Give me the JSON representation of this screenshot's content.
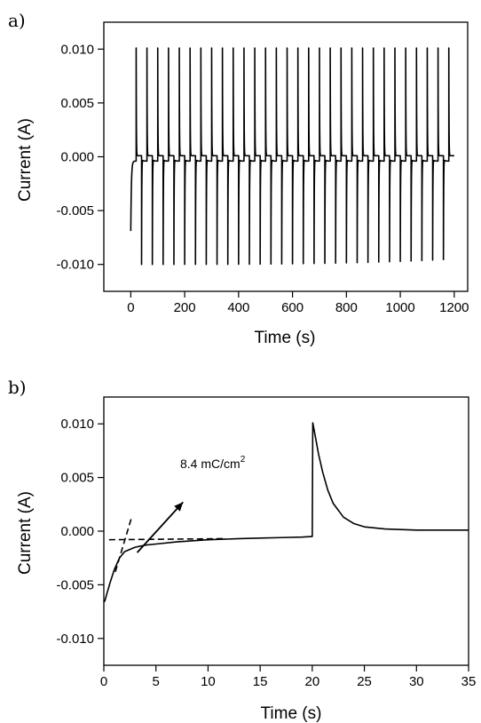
{
  "chart_data": [
    {
      "panel": "a)",
      "type": "line",
      "title": "",
      "xlabel": "Time (s)",
      "ylabel": "Current (A)",
      "xlim": [
        -100,
        1250
      ],
      "ylim": [
        -0.0125,
        0.0125
      ],
      "xticks": [
        "0",
        "200",
        "400",
        "600",
        "800",
        "1000",
        "1200"
      ],
      "yticks": [
        "0.010",
        "0.005",
        "0.000",
        "-0.005",
        "-0.010"
      ],
      "grid": false,
      "pulse_period_s": 40,
      "pulse_count": 30,
      "oxidation_peak_A": 0.0101,
      "reduction_peak_A": -0.01,
      "initial_current_A": -0.0065,
      "last_reduction_peak_A": -0.0095
    },
    {
      "panel": "b)",
      "type": "line",
      "title": "",
      "xlabel": "Time (s)",
      "ylabel": "Current (A)",
      "xlim": [
        0,
        35
      ],
      "ylim": [
        -0.0125,
        0.0125
      ],
      "xticks": [
        "0",
        "5",
        "10",
        "15",
        "20",
        "25",
        "30",
        "35"
      ],
      "yticks": [
        "0.010",
        "0.005",
        "0.000",
        "-0.005",
        "-0.010"
      ],
      "grid": false,
      "annotation": {
        "text": "8.4 mC/cm",
        "superscript": "2"
      },
      "series": [
        {
          "x": [
            0,
            0.1,
            0.3,
            0.6,
            1,
            1.5,
            2,
            3,
            4,
            5,
            7,
            10,
            13,
            15,
            17,
            19,
            19.9,
            20,
            20.05,
            20.3,
            20.6,
            21,
            21.5,
            22,
            23,
            24,
            25,
            27,
            30,
            33,
            35
          ],
          "y": [
            -0.0066,
            -0.0065,
            -0.0058,
            -0.0048,
            -0.0036,
            -0.0025,
            -0.0019,
            -0.0015,
            -0.0013,
            -0.0012,
            -0.001,
            -0.0008,
            -0.0007,
            -0.00065,
            -0.0006,
            -0.00055,
            -0.0005,
            -0.0005,
            0.0101,
            0.0088,
            0.0072,
            0.0055,
            0.0038,
            0.0026,
            0.0013,
            0.0007,
            0.0004,
            0.0002,
            0.0001,
            0.0001,
            0.0001
          ]
        }
      ],
      "tangent_lines": [
        {
          "x": [
            1.1,
            2.7
          ],
          "y": [
            -0.0038,
            0.0014
          ]
        },
        {
          "x": [
            0.5,
            11.5
          ],
          "y": [
            -0.0008,
            -0.0007
          ]
        }
      ],
      "arrow": {
        "from": [
          3.2,
          -0.002
        ],
        "to": [
          7.6,
          0.0027
        ]
      }
    }
  ]
}
